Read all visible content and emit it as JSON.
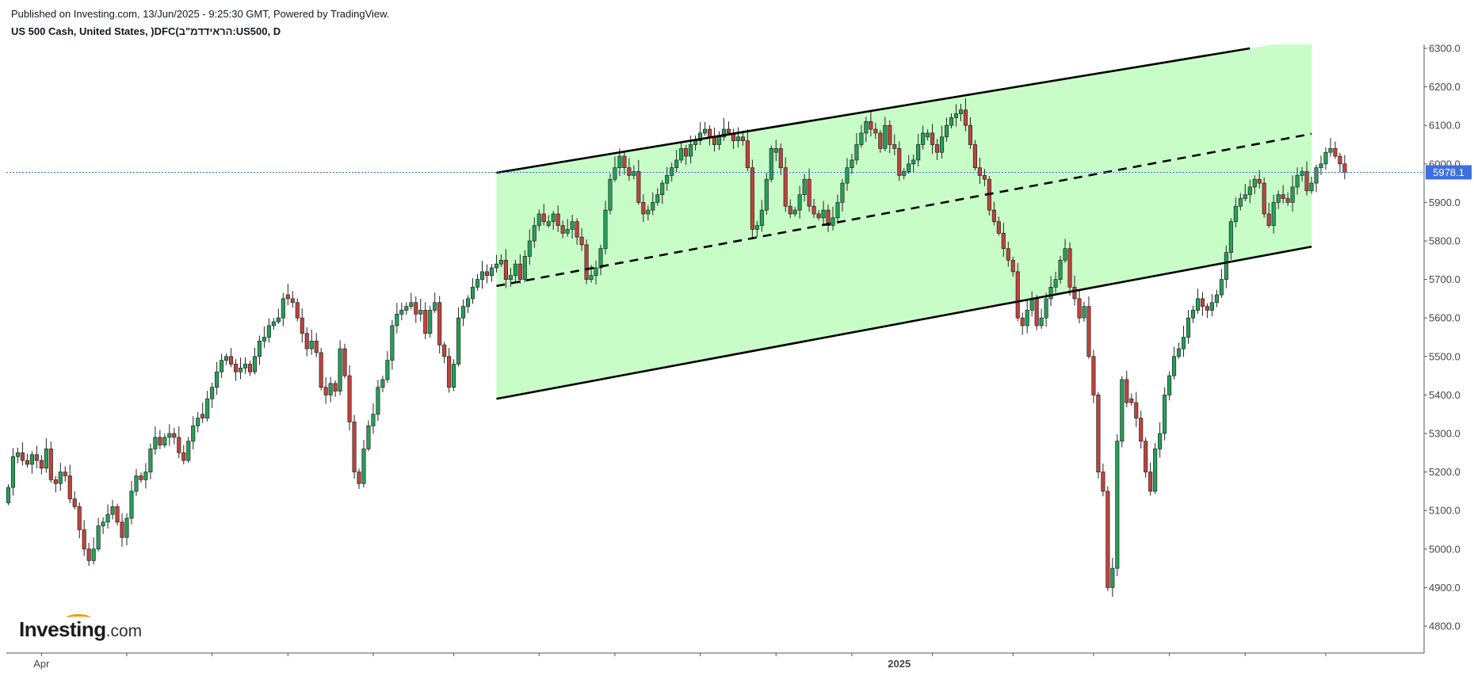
{
  "header": {
    "published": "Published on Investing.com, 13/Jun/2025 - 9:25:30 GMT, Powered by TradingView.",
    "symbol": "US 500 Cash, United States, )DFC(הראידדמ\"ב:US500, D"
  },
  "logo": {
    "name": "Investing",
    "suffix": ".com"
  },
  "colors": {
    "up": "#26a05a",
    "down": "#c0443c",
    "channel_fill": "#c8fdc8",
    "price_line": "#3d6cd6",
    "price_label_bg": "#3f6fe0"
  },
  "chart_data": {
    "type": "candlestick",
    "timeframe": "D",
    "ylim": [
      4730,
      6310
    ],
    "yticks": [
      4800,
      4900,
      5000,
      5100,
      5200,
      5300,
      5400,
      5500,
      5600,
      5700,
      5800,
      5900,
      6000,
      6100,
      6200,
      6300
    ],
    "ytick_labels": [
      "4800.0",
      "4900.0",
      "5000.0",
      "5100.0",
      "5200.0",
      "5300.0",
      "5400.0",
      "5500.0",
      "5600.0",
      "5700.0",
      "5800.0",
      "5900.0",
      "6000.0",
      "6100.0",
      "6200.0",
      "6300.0"
    ],
    "xtick_labels": [
      {
        "label": "Apr",
        "index": 7
      },
      {
        "label": "2025",
        "index": 188
      }
    ],
    "last_price": 5978.1,
    "last_price_label": "5978.1",
    "closes": [
      5160,
      5240,
      5250,
      5230,
      5220,
      5245,
      5230,
      5210,
      5260,
      5180,
      5170,
      5200,
      5190,
      5130,
      5110,
      5050,
      5000,
      4970,
      5000,
      5060,
      5070,
      5090,
      5110,
      5070,
      5030,
      5080,
      5150,
      5190,
      5180,
      5200,
      5260,
      5290,
      5270,
      5290,
      5300,
      5290,
      5250,
      5230,
      5280,
      5320,
      5340,
      5340,
      5390,
      5420,
      5460,
      5490,
      5500,
      5480,
      5460,
      5470,
      5480,
      5460,
      5500,
      5540,
      5550,
      5580,
      5590,
      5600,
      5650,
      5650,
      5640,
      5600,
      5560,
      5520,
      5540,
      5510,
      5420,
      5400,
      5430,
      5410,
      5520,
      5450,
      5330,
      5200,
      5170,
      5260,
      5320,
      5350,
      5420,
      5440,
      5490,
      5580,
      5610,
      5620,
      5630,
      5640,
      5610,
      5620,
      5560,
      5620,
      5640,
      5530,
      5500,
      5420,
      5480,
      5600,
      5630,
      5650,
      5680,
      5700,
      5720,
      5710,
      5730,
      5740,
      5750,
      5700,
      5710,
      5740,
      5700,
      5760,
      5800,
      5840,
      5870,
      5850,
      5850,
      5870,
      5840,
      5820,
      5830,
      5850,
      5810,
      5790,
      5700,
      5710,
      5730,
      5780,
      5880,
      5960,
      5990,
      6020,
      5990,
      5970,
      5980,
      5900,
      5870,
      5880,
      5900,
      5920,
      5950,
      5970,
      5990,
      6010,
      6040,
      6020,
      6050,
      6060,
      6080,
      6090,
      6070,
      6050,
      6070,
      6090,
      6080,
      6060,
      6070,
      6060,
      5990,
      5830,
      5840,
      5880,
      5960,
      6040,
      6040,
      5990,
      5890,
      5870,
      5880,
      5920,
      5960,
      5890,
      5870,
      5860,
      5880,
      5840,
      5860,
      5900,
      5950,
      5990,
      6010,
      6050,
      6080,
      6110,
      6090,
      6080,
      6040,
      6100,
      6050,
      6040,
      5970,
      5980,
      6000,
      6010,
      6050,
      6080,
      6080,
      6050,
      6030,
      6070,
      6100,
      6120,
      6130,
      6140,
      6100,
      6050,
      5990,
      5970,
      5960,
      5880,
      5850,
      5820,
      5780,
      5750,
      5720,
      5600,
      5580,
      5620,
      5650,
      5580,
      5600,
      5650,
      5680,
      5700,
      5750,
      5780,
      5680,
      5650,
      5600,
      5630,
      5500,
      5400,
      5200,
      5150,
      4900,
      4950,
      5280,
      5440,
      5380,
      5380,
      5340,
      5280,
      5200,
      5150,
      5260,
      5300,
      5400,
      5450,
      5500,
      5520,
      5550,
      5600,
      5620,
      5650,
      5630,
      5620,
      5640,
      5660,
      5700,
      5770,
      5850,
      5890,
      5910,
      5920,
      5940,
      5960,
      5950,
      5870,
      5840,
      5900,
      5920,
      5910,
      5900,
      5940,
      5970,
      5980,
      5930,
      5950,
      5990,
      6000,
      6030,
      6040,
      6020,
      6000,
      5978.1
    ]
  },
  "channel": {
    "upper": {
      "from": {
        "index": 103,
        "price": 5977
      },
      "to": {
        "index": 262,
        "price": 6300
      }
    },
    "lower": {
      "from": {
        "index": 103,
        "price": 5390
      },
      "to": {
        "index": 275,
        "price": 5785
      }
    },
    "middle": {
      "from": {
        "index": 103,
        "price": 5683
      },
      "to": {
        "index": 275,
        "price": 6078
      }
    }
  }
}
